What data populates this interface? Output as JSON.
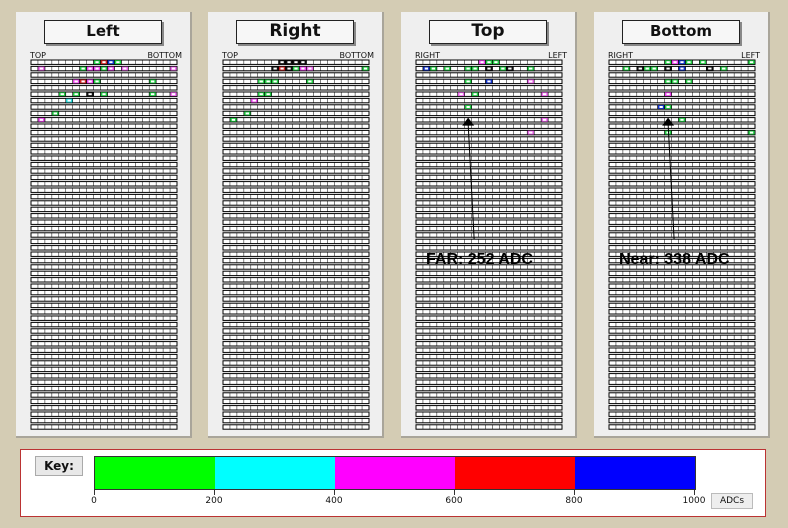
{
  "panels": [
    {
      "id": "left",
      "title": "Left",
      "left_header": "TOP",
      "right_header": "BOTTOM",
      "hits": [
        {
          "row": 1,
          "col": 1,
          "color": "#ee66ee"
        },
        {
          "row": 1,
          "col": 7,
          "color": "#22cc44"
        },
        {
          "row": 1,
          "col": 8,
          "color": "#ee44ee"
        },
        {
          "row": 1,
          "col": 9,
          "color": "#ee44ee"
        },
        {
          "row": 1,
          "col": 10,
          "color": "#22cc44"
        },
        {
          "row": 1,
          "col": 11,
          "color": "#ee44ee"
        },
        {
          "row": 1,
          "col": 13,
          "color": "#ee66ee"
        },
        {
          "row": 1,
          "col": 20,
          "color": "#ee66ee"
        },
        {
          "row": 0,
          "col": 9,
          "color": "#22cc44"
        },
        {
          "row": 0,
          "col": 10,
          "color": "#cc2222"
        },
        {
          "row": 0,
          "col": 11,
          "color": "#1133cc"
        },
        {
          "row": 0,
          "col": 12,
          "color": "#22dd44"
        },
        {
          "row": 3,
          "col": 6,
          "color": "#ee44ee"
        },
        {
          "row": 3,
          "col": 7,
          "color": "#cc2222"
        },
        {
          "row": 3,
          "col": 8,
          "color": "#ee44ee"
        },
        {
          "row": 3,
          "col": 9,
          "color": "#22cc44"
        },
        {
          "row": 3,
          "col": 17,
          "color": "#22cc44"
        },
        {
          "row": 5,
          "col": 4,
          "color": "#22cc44"
        },
        {
          "row": 5,
          "col": 6,
          "color": "#22cc44"
        },
        {
          "row": 5,
          "col": 8,
          "color": "#111111"
        },
        {
          "row": 5,
          "col": 10,
          "color": "#22cc44"
        },
        {
          "row": 5,
          "col": 17,
          "color": "#22cc44"
        },
        {
          "row": 5,
          "col": 20,
          "color": "#ee66ee"
        },
        {
          "row": 6,
          "col": 5,
          "color": "#22dddd"
        },
        {
          "row": 8,
          "col": 3,
          "color": "#22cc44"
        },
        {
          "row": 9,
          "col": 1,
          "color": "#ee44ee"
        }
      ],
      "arrow": null
    },
    {
      "id": "right",
      "title": "Right",
      "left_header": "TOP",
      "right_header": "BOTTOM",
      "hits": [
        {
          "row": 0,
          "col": 8,
          "color": "#111111"
        },
        {
          "row": 0,
          "col": 9,
          "color": "#111111"
        },
        {
          "row": 0,
          "col": 10,
          "color": "#111111"
        },
        {
          "row": 0,
          "col": 11,
          "color": "#111111"
        },
        {
          "row": 1,
          "col": 7,
          "color": "#111111"
        },
        {
          "row": 1,
          "col": 8,
          "color": "#cc2222"
        },
        {
          "row": 1,
          "col": 9,
          "color": "#111111"
        },
        {
          "row": 1,
          "col": 10,
          "color": "#22cc44"
        },
        {
          "row": 1,
          "col": 11,
          "color": "#ee44ee"
        },
        {
          "row": 1,
          "col": 12,
          "color": "#ee66ee"
        },
        {
          "row": 1,
          "col": 20,
          "color": "#22cc44"
        },
        {
          "row": 3,
          "col": 5,
          "color": "#22cc44"
        },
        {
          "row": 3,
          "col": 6,
          "color": "#22cc44"
        },
        {
          "row": 3,
          "col": 7,
          "color": "#22cc44"
        },
        {
          "row": 3,
          "col": 12,
          "color": "#22cc44"
        },
        {
          "row": 5,
          "col": 5,
          "color": "#22cc44"
        },
        {
          "row": 5,
          "col": 6,
          "color": "#22cc44"
        },
        {
          "row": 6,
          "col": 4,
          "color": "#ee44ee"
        },
        {
          "row": 8,
          "col": 3,
          "color": "#22cc44"
        },
        {
          "row": 9,
          "col": 1,
          "color": "#22cc44"
        }
      ],
      "arrow": null
    },
    {
      "id": "top",
      "title": "Top",
      "left_header": "RIGHT",
      "right_header": "LEFT",
      "hits": [
        {
          "row": 0,
          "col": 9,
          "color": "#ee44ee"
        },
        {
          "row": 0,
          "col": 10,
          "color": "#22cc44"
        },
        {
          "row": 0,
          "col": 11,
          "color": "#22cc44"
        },
        {
          "row": 1,
          "col": 1,
          "color": "#1133cc"
        },
        {
          "row": 1,
          "col": 2,
          "color": "#22cc44"
        },
        {
          "row": 1,
          "col": 4,
          "color": "#22cc44"
        },
        {
          "row": 1,
          "col": 7,
          "color": "#22cc44"
        },
        {
          "row": 1,
          "col": 8,
          "color": "#22cc44"
        },
        {
          "row": 1,
          "col": 10,
          "color": "#111111"
        },
        {
          "row": 1,
          "col": 12,
          "color": "#22cc44"
        },
        {
          "row": 1,
          "col": 13,
          "color": "#111111"
        },
        {
          "row": 1,
          "col": 16,
          "color": "#22cc44"
        },
        {
          "row": 3,
          "col": 7,
          "color": "#22cc44"
        },
        {
          "row": 3,
          "col": 10,
          "color": "#1133cc"
        },
        {
          "row": 3,
          "col": 16,
          "color": "#ee66ee"
        },
        {
          "row": 5,
          "col": 6,
          "color": "#ee66ee"
        },
        {
          "row": 5,
          "col": 8,
          "color": "#22cc44"
        },
        {
          "row": 5,
          "col": 18,
          "color": "#ee66ee"
        },
        {
          "row": 7,
          "col": 7,
          "color": "#22cc44"
        },
        {
          "row": 9,
          "col": 18,
          "color": "#ee66ee"
        },
        {
          "row": 11,
          "col": 16,
          "color": "#ee66ee"
        }
      ],
      "arrow": {
        "label": "FAR: 252 ADC",
        "col": 7,
        "row": 9
      }
    },
    {
      "id": "bottom",
      "title": "Bottom",
      "left_header": "RIGHT",
      "right_header": "LEFT",
      "hits": [
        {
          "row": 0,
          "col": 8,
          "color": "#22cc44"
        },
        {
          "row": 0,
          "col": 9,
          "color": "#ee44ee"
        },
        {
          "row": 0,
          "col": 10,
          "color": "#1133cc"
        },
        {
          "row": 0,
          "col": 11,
          "color": "#22cc44"
        },
        {
          "row": 0,
          "col": 13,
          "color": "#22cc44"
        },
        {
          "row": 0,
          "col": 20,
          "color": "#22cc44"
        },
        {
          "row": 1,
          "col": 2,
          "color": "#22cc44"
        },
        {
          "row": 1,
          "col": 4,
          "color": "#111111"
        },
        {
          "row": 1,
          "col": 5,
          "color": "#22cc44"
        },
        {
          "row": 1,
          "col": 6,
          "color": "#22cc44"
        },
        {
          "row": 1,
          "col": 8,
          "color": "#111111"
        },
        {
          "row": 1,
          "col": 10,
          "color": "#1133cc"
        },
        {
          "row": 1,
          "col": 14,
          "color": "#111111"
        },
        {
          "row": 1,
          "col": 16,
          "color": "#22cc44"
        },
        {
          "row": 3,
          "col": 8,
          "color": "#22cc44"
        },
        {
          "row": 3,
          "col": 9,
          "color": "#22cc44"
        },
        {
          "row": 3,
          "col": 11,
          "color": "#22cc44"
        },
        {
          "row": 5,
          "col": 8,
          "color": "#ee44ee"
        },
        {
          "row": 7,
          "col": 7,
          "color": "#1133cc"
        },
        {
          "row": 7,
          "col": 8,
          "color": "#22cc44"
        },
        {
          "row": 9,
          "col": 10,
          "color": "#22cc44"
        },
        {
          "row": 11,
          "col": 8,
          "color": "#22cc44"
        },
        {
          "row": 11,
          "col": 20,
          "color": "#22cc44"
        }
      ],
      "arrow": {
        "label": "Near: 338 ADC",
        "col": 8,
        "row": 9
      }
    }
  ],
  "grid": {
    "rows": 58,
    "cols": 21
  },
  "key": {
    "label": "Key:",
    "colors": [
      "#00ff00",
      "#00ffff",
      "#ff00ff",
      "#ff0000",
      "#0000ff"
    ],
    "ticks": [
      "0",
      "200",
      "400",
      "600",
      "800",
      "1000"
    ],
    "units": "ADCs"
  }
}
